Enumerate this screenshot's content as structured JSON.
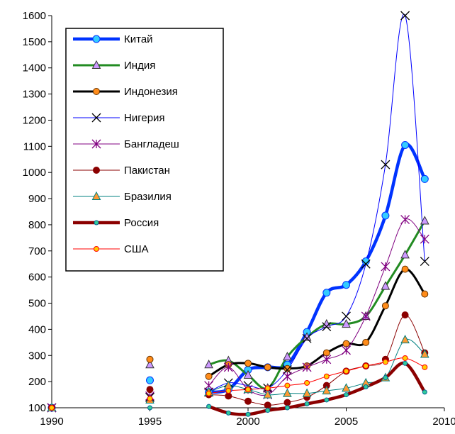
{
  "chart_data": {
    "type": "line",
    "title": "",
    "xlabel": "",
    "ylabel": "",
    "xlim": [
      1990,
      2010
    ],
    "ylim": [
      100,
      1600
    ],
    "xticks": [
      1990,
      1995,
      2000,
      2005,
      2010
    ],
    "yticks": [
      100,
      200,
      300,
      400,
      500,
      600,
      700,
      800,
      900,
      1000,
      1100,
      1200,
      1300,
      1400,
      1500,
      1600
    ],
    "grid": false,
    "legend_position": "top-left",
    "series": [
      {
        "name": "Китай",
        "color": "#0033ff",
        "width": 4.5,
        "marker": "circle",
        "marker_fill": "#33ccff",
        "marker_stroke": "#0033ff",
        "marker_size": 10,
        "connect_from": 1998,
        "x": [
          1990,
          1995,
          1998,
          1999,
          2000,
          2001,
          2002,
          2003,
          2004,
          2005,
          2006,
          2007,
          2008,
          2009
        ],
        "y": [
          100,
          205,
          160,
          170,
          245,
          255,
          265,
          390,
          540,
          570,
          660,
          835,
          1105,
          975
        ]
      },
      {
        "name": "Индия",
        "color": "#228b22",
        "width": 3,
        "marker": "triangle",
        "marker_fill": "#cc99ff",
        "marker_stroke": "#333333",
        "marker_size": 11,
        "connect_from": 1998,
        "x": [
          1990,
          1995,
          1998,
          1999,
          2000,
          2001,
          2002,
          2003,
          2004,
          2005,
          2006,
          2007,
          2008,
          2009
        ],
        "y": [
          100,
          265,
          265,
          280,
          225,
          175,
          295,
          370,
          420,
          420,
          450,
          565,
          685,
          815
        ]
      },
      {
        "name": "Индонезия",
        "color": "#000000",
        "width": 3,
        "marker": "circle",
        "marker_fill": "#ff8c1a",
        "marker_stroke": "#663300",
        "marker_size": 9,
        "connect_from": 1998,
        "x": [
          1990,
          1995,
          1998,
          1999,
          2000,
          2001,
          2002,
          2003,
          2004,
          2005,
          2006,
          2007,
          2008,
          2009
        ],
        "y": [
          100,
          285,
          220,
          265,
          270,
          255,
          250,
          260,
          310,
          345,
          350,
          490,
          630,
          535
        ]
      },
      {
        "name": "Нигерия",
        "color": "#0000ff",
        "width": 1,
        "marker": "x",
        "marker_fill": "none",
        "marker_stroke": "#000000",
        "marker_size": 12,
        "connect_from": 1998,
        "x": [
          1990,
          1995,
          1998,
          1999,
          2000,
          2001,
          2002,
          2003,
          2004,
          2005,
          2006,
          2007,
          2008,
          2009
        ],
        "y": [
          100,
          140,
          160,
          195,
          185,
          175,
          245,
          365,
          410,
          450,
          650,
          1030,
          1600,
          660
        ]
      },
      {
        "name": "Бангладеш",
        "color": "#800080",
        "width": 1,
        "marker": "asterisk",
        "marker_fill": "none",
        "marker_stroke": "#800080",
        "marker_size": 12,
        "connect_from": 1998,
        "x": [
          1990,
          1995,
          1998,
          1999,
          2000,
          2001,
          2002,
          2003,
          2004,
          2005,
          2006,
          2007,
          2008,
          2009
        ],
        "y": [
          100,
          145,
          185,
          255,
          170,
          150,
          220,
          255,
          285,
          320,
          450,
          640,
          820,
          745
        ]
      },
      {
        "name": "Пакистан",
        "color": "#8b0000",
        "width": 1,
        "marker": "circle",
        "marker_fill": "#8b0000",
        "marker_stroke": "#8b0000",
        "marker_size": 9,
        "connect_from": 1998,
        "x": [
          1990,
          1995,
          1998,
          1999,
          2000,
          2001,
          2002,
          2003,
          2004,
          2005,
          2006,
          2007,
          2008,
          2009
        ],
        "y": [
          100,
          170,
          150,
          145,
          125,
          110,
          120,
          140,
          185,
          240,
          260,
          285,
          455,
          310
        ]
      },
      {
        "name": "Бразилия",
        "color": "#008080",
        "width": 1,
        "marker": "triangle",
        "marker_fill": "#ff9933",
        "marker_stroke": "#008080",
        "marker_size": 11,
        "connect_from": 1998,
        "x": [
          1990,
          1995,
          1998,
          1999,
          2000,
          2001,
          2002,
          2003,
          2004,
          2005,
          2006,
          2007,
          2008,
          2009
        ],
        "y": [
          100,
          130,
          160,
          185,
          170,
          150,
          155,
          155,
          165,
          175,
          195,
          215,
          360,
          305
        ]
      },
      {
        "name": "Россия",
        "color": "#8b0000",
        "width": 4.5,
        "marker": "circle",
        "marker_fill": "#33cc99",
        "marker_stroke": "#006699",
        "marker_size": 6,
        "connect_from": 1998,
        "x": [
          1990,
          1995,
          1998,
          1999,
          2000,
          2001,
          2002,
          2003,
          2004,
          2005,
          2006,
          2007,
          2008,
          2009
        ],
        "y": [
          100,
          100,
          105,
          80,
          75,
          90,
          100,
          115,
          130,
          150,
          180,
          215,
          270,
          160
        ]
      },
      {
        "name": "США",
        "color": "#ff0000",
        "width": 1,
        "marker": "circle",
        "marker_fill": "#ffcc00",
        "marker_stroke": "#ff0000",
        "marker_size": 7,
        "connect_from": 1998,
        "x": [
          1990,
          1995,
          1998,
          1999,
          2000,
          2001,
          2002,
          2003,
          2004,
          2005,
          2006,
          2007,
          2008,
          2009
        ],
        "y": [
          100,
          135,
          155,
          165,
          170,
          175,
          185,
          195,
          220,
          240,
          260,
          275,
          290,
          255
        ]
      }
    ]
  }
}
